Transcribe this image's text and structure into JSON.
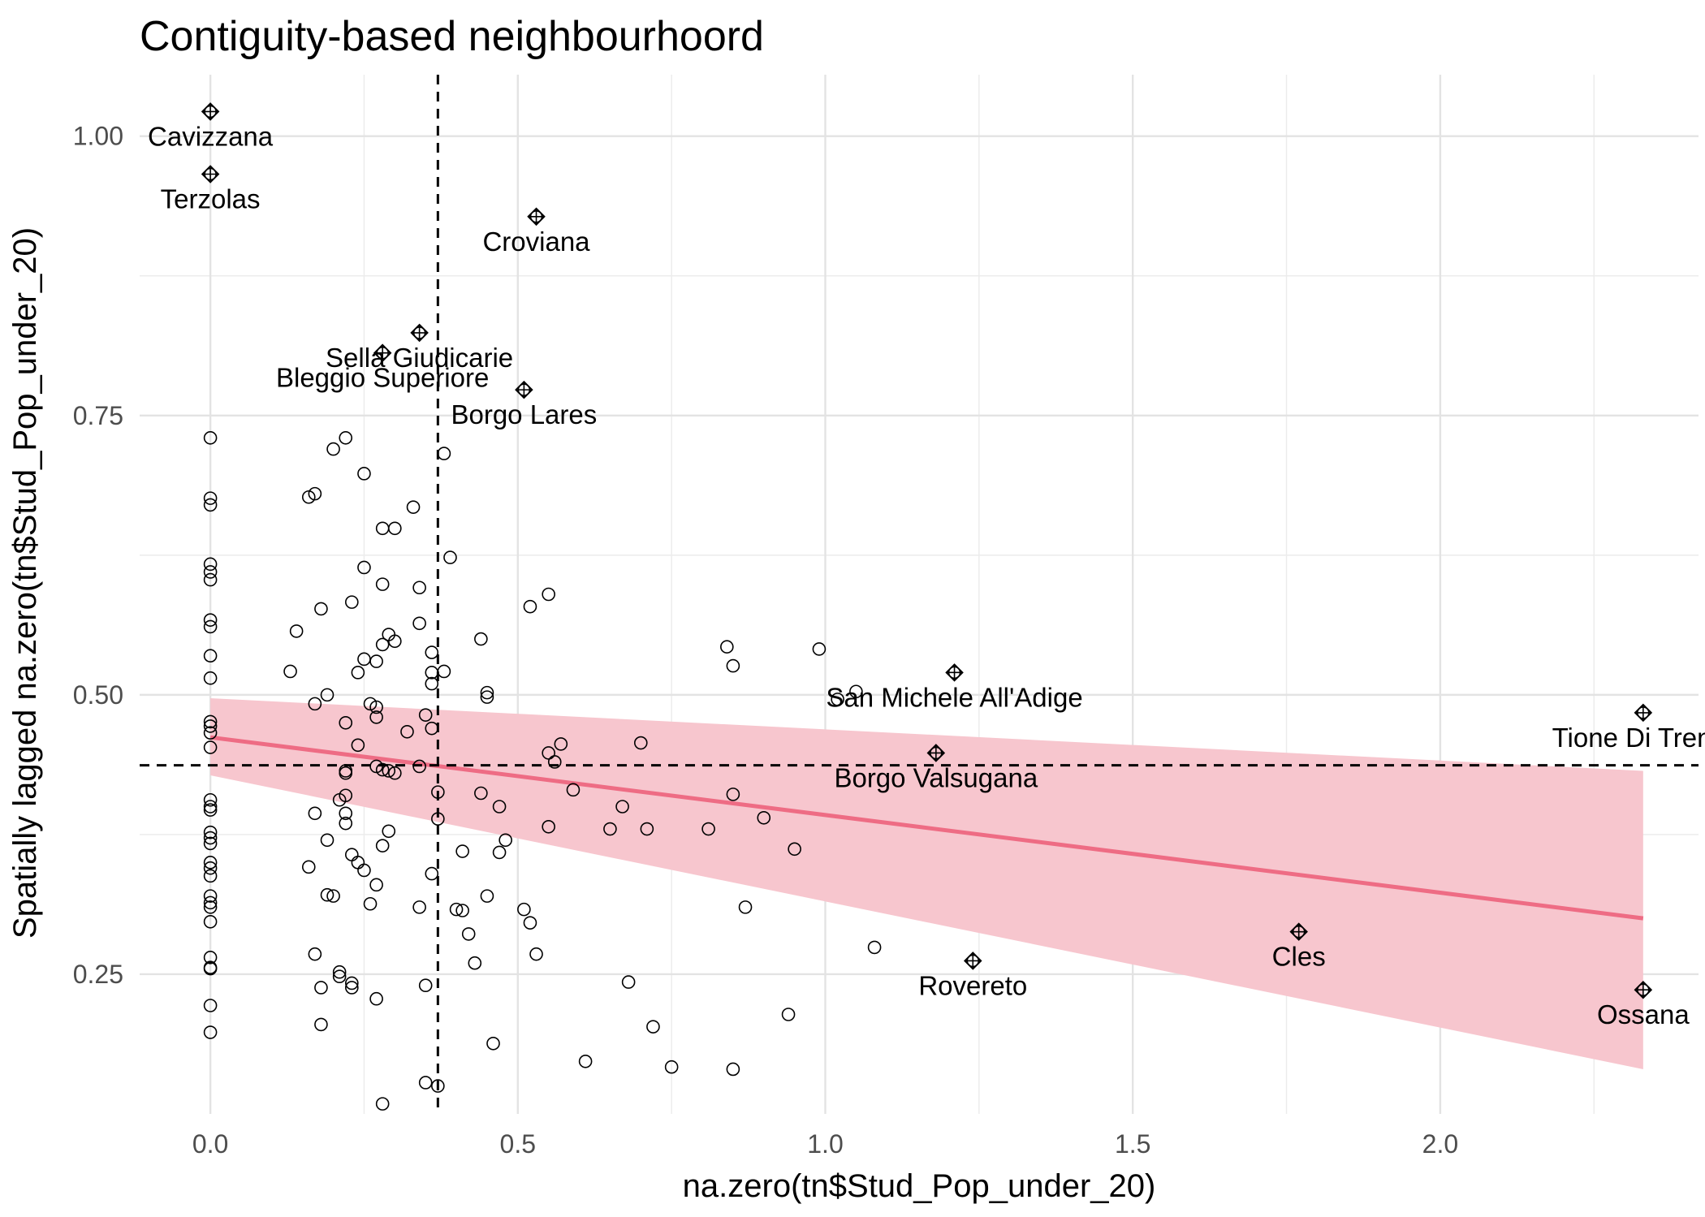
{
  "chart_data": {
    "type": "scatter",
    "title": "Contiguity-based neighbourhoord",
    "xlabel": "na.zero(tn$Stud_Pop_under_20)",
    "ylabel": "Spatially lagged na.zero(tn$Stud_Pop_under_20)",
    "xlim": [
      -0.115,
      2.42
    ],
    "ylim": [
      0.125,
      1.055
    ],
    "x_ticks": [
      0.0,
      0.5,
      1.0,
      1.5,
      2.0
    ],
    "x_tick_labels": [
      "0.0",
      "0.5",
      "1.0",
      "1.5",
      "2.0"
    ],
    "y_ticks": [
      0.25,
      0.5,
      0.75,
      1.0
    ],
    "y_tick_labels": [
      "0.25",
      "0.50",
      "0.75",
      "1.00"
    ],
    "grid": true,
    "mean_x": 0.37,
    "mean_y": 0.437,
    "regression": {
      "x": [
        0.0,
        2.33
      ],
      "y": [
        0.462,
        0.3
      ],
      "ci_lower": [
        0.428,
        0.165
      ],
      "ci_upper": [
        0.497,
        0.432
      ],
      "color": "#ee6c84",
      "fill": "#f7c6ce"
    },
    "influential_points": [
      {
        "x": 0.0,
        "y": 1.022,
        "label": "Cavizzana"
      },
      {
        "x": 0.0,
        "y": 0.966,
        "label": "Terzolas"
      },
      {
        "x": 0.53,
        "y": 0.928,
        "label": "Croviana"
      },
      {
        "x": 0.34,
        "y": 0.824,
        "label": "Sella Giudicarie"
      },
      {
        "x": 0.28,
        "y": 0.806,
        "label": "Bleggio Superiore"
      },
      {
        "x": 0.51,
        "y": 0.773,
        "label": "Borgo Lares"
      },
      {
        "x": 1.21,
        "y": 0.52,
        "label": "San Michele All'Adige"
      },
      {
        "x": 1.18,
        "y": 0.448,
        "label": "Borgo Valsugana"
      },
      {
        "x": 2.33,
        "y": 0.484,
        "label": "Tione Di Trento"
      },
      {
        "x": 1.77,
        "y": 0.288,
        "label": "Cles"
      },
      {
        "x": 1.24,
        "y": 0.262,
        "label": "Rovereto"
      },
      {
        "x": 2.33,
        "y": 0.236,
        "label": "Ossana"
      }
    ],
    "points": [
      [
        0.0,
        0.73
      ],
      [
        0.0,
        0.676
      ],
      [
        0.0,
        0.67
      ],
      [
        0.0,
        0.617
      ],
      [
        0.0,
        0.61
      ],
      [
        0.0,
        0.603
      ],
      [
        0.0,
        0.567
      ],
      [
        0.0,
        0.561
      ],
      [
        0.0,
        0.535
      ],
      [
        0.0,
        0.515
      ],
      [
        0.0,
        0.476
      ],
      [
        0.0,
        0.472
      ],
      [
        0.0,
        0.466
      ],
      [
        0.0,
        0.453
      ],
      [
        0.0,
        0.406
      ],
      [
        0.0,
        0.4
      ],
      [
        0.0,
        0.397
      ],
      [
        0.0,
        0.377
      ],
      [
        0.0,
        0.372
      ],
      [
        0.0,
        0.367
      ],
      [
        0.0,
        0.35
      ],
      [
        0.0,
        0.345
      ],
      [
        0.0,
        0.338
      ],
      [
        0.0,
        0.32
      ],
      [
        0.0,
        0.314
      ],
      [
        0.0,
        0.31
      ],
      [
        0.0,
        0.297
      ],
      [
        0.0,
        0.265
      ],
      [
        0.0,
        0.256
      ],
      [
        0.0,
        0.255
      ],
      [
        0.0,
        0.222
      ],
      [
        0.0,
        0.198
      ],
      [
        0.2,
        0.72
      ],
      [
        0.22,
        0.73
      ],
      [
        0.25,
        0.698
      ],
      [
        0.16,
        0.677
      ],
      [
        0.17,
        0.68
      ],
      [
        0.33,
        0.668
      ],
      [
        0.28,
        0.649
      ],
      [
        0.3,
        0.649
      ],
      [
        0.38,
        0.716
      ],
      [
        0.39,
        0.623
      ],
      [
        0.25,
        0.614
      ],
      [
        0.28,
        0.599
      ],
      [
        0.34,
        0.596
      ],
      [
        0.23,
        0.583
      ],
      [
        0.18,
        0.577
      ],
      [
        0.52,
        0.579
      ],
      [
        0.55,
        0.59
      ],
      [
        0.14,
        0.557
      ],
      [
        0.34,
        0.564
      ],
      [
        0.44,
        0.55
      ],
      [
        0.29,
        0.554
      ],
      [
        0.28,
        0.545
      ],
      [
        0.3,
        0.548
      ],
      [
        0.36,
        0.538
      ],
      [
        0.27,
        0.53
      ],
      [
        0.25,
        0.532
      ],
      [
        0.36,
        0.52
      ],
      [
        0.38,
        0.521
      ],
      [
        0.24,
        0.52
      ],
      [
        0.13,
        0.521
      ],
      [
        0.36,
        0.51
      ],
      [
        0.19,
        0.5
      ],
      [
        0.45,
        0.502
      ],
      [
        0.45,
        0.498
      ],
      [
        0.17,
        0.492
      ],
      [
        0.26,
        0.492
      ],
      [
        0.27,
        0.489
      ],
      [
        0.27,
        0.48
      ],
      [
        0.35,
        0.482
      ],
      [
        0.22,
        0.475
      ],
      [
        0.36,
        0.47
      ],
      [
        0.32,
        0.467
      ],
      [
        0.24,
        0.455
      ],
      [
        0.57,
        0.456
      ],
      [
        0.55,
        0.448
      ],
      [
        0.56,
        0.44
      ],
      [
        0.22,
        0.432
      ],
      [
        0.22,
        0.43
      ],
      [
        0.27,
        0.436
      ],
      [
        0.28,
        0.433
      ],
      [
        0.29,
        0.432
      ],
      [
        0.3,
        0.43
      ],
      [
        0.34,
        0.436
      ],
      [
        0.59,
        0.415
      ],
      [
        0.37,
        0.413
      ],
      [
        0.44,
        0.412
      ],
      [
        0.21,
        0.406
      ],
      [
        0.22,
        0.41
      ],
      [
        0.47,
        0.4
      ],
      [
        0.17,
        0.394
      ],
      [
        0.22,
        0.394
      ],
      [
        0.22,
        0.385
      ],
      [
        0.37,
        0.389
      ],
      [
        0.29,
        0.378
      ],
      [
        0.55,
        0.382
      ],
      [
        0.48,
        0.37
      ],
      [
        0.19,
        0.37
      ],
      [
        0.28,
        0.365
      ],
      [
        0.47,
        0.359
      ],
      [
        0.41,
        0.36
      ],
      [
        0.23,
        0.357
      ],
      [
        0.24,
        0.35
      ],
      [
        0.25,
        0.343
      ],
      [
        0.16,
        0.346
      ],
      [
        0.36,
        0.34
      ],
      [
        0.19,
        0.321
      ],
      [
        0.2,
        0.32
      ],
      [
        0.27,
        0.33
      ],
      [
        0.45,
        0.32
      ],
      [
        0.26,
        0.313
      ],
      [
        0.34,
        0.31
      ],
      [
        0.4,
        0.308
      ],
      [
        0.41,
        0.307
      ],
      [
        0.51,
        0.308
      ],
      [
        0.52,
        0.296
      ],
      [
        0.42,
        0.286
      ],
      [
        0.53,
        0.268
      ],
      [
        0.17,
        0.268
      ],
      [
        0.43,
        0.26
      ],
      [
        0.21,
        0.252
      ],
      [
        0.21,
        0.248
      ],
      [
        0.23,
        0.242
      ],
      [
        0.23,
        0.238
      ],
      [
        0.18,
        0.238
      ],
      [
        0.35,
        0.24
      ],
      [
        0.27,
        0.228
      ],
      [
        0.18,
        0.205
      ],
      [
        0.46,
        0.188
      ],
      [
        0.35,
        0.153
      ],
      [
        0.37,
        0.15
      ],
      [
        0.28,
        0.134
      ],
      [
        0.65,
        0.38
      ],
      [
        0.67,
        0.4
      ],
      [
        0.7,
        0.457
      ],
      [
        0.71,
        0.38
      ],
      [
        0.68,
        0.243
      ],
      [
        0.72,
        0.203
      ],
      [
        0.61,
        0.172
      ],
      [
        0.75,
        0.167
      ],
      [
        0.81,
        0.38
      ],
      [
        0.85,
        0.411
      ],
      [
        0.84,
        0.543
      ],
      [
        0.85,
        0.526
      ],
      [
        0.9,
        0.39
      ],
      [
        0.87,
        0.31
      ],
      [
        0.85,
        0.165
      ],
      [
        0.95,
        0.362
      ],
      [
        0.94,
        0.214
      ],
      [
        0.99,
        0.541
      ],
      [
        1.02,
        0.496
      ],
      [
        1.05,
        0.503
      ],
      [
        1.08,
        0.274
      ]
    ]
  }
}
